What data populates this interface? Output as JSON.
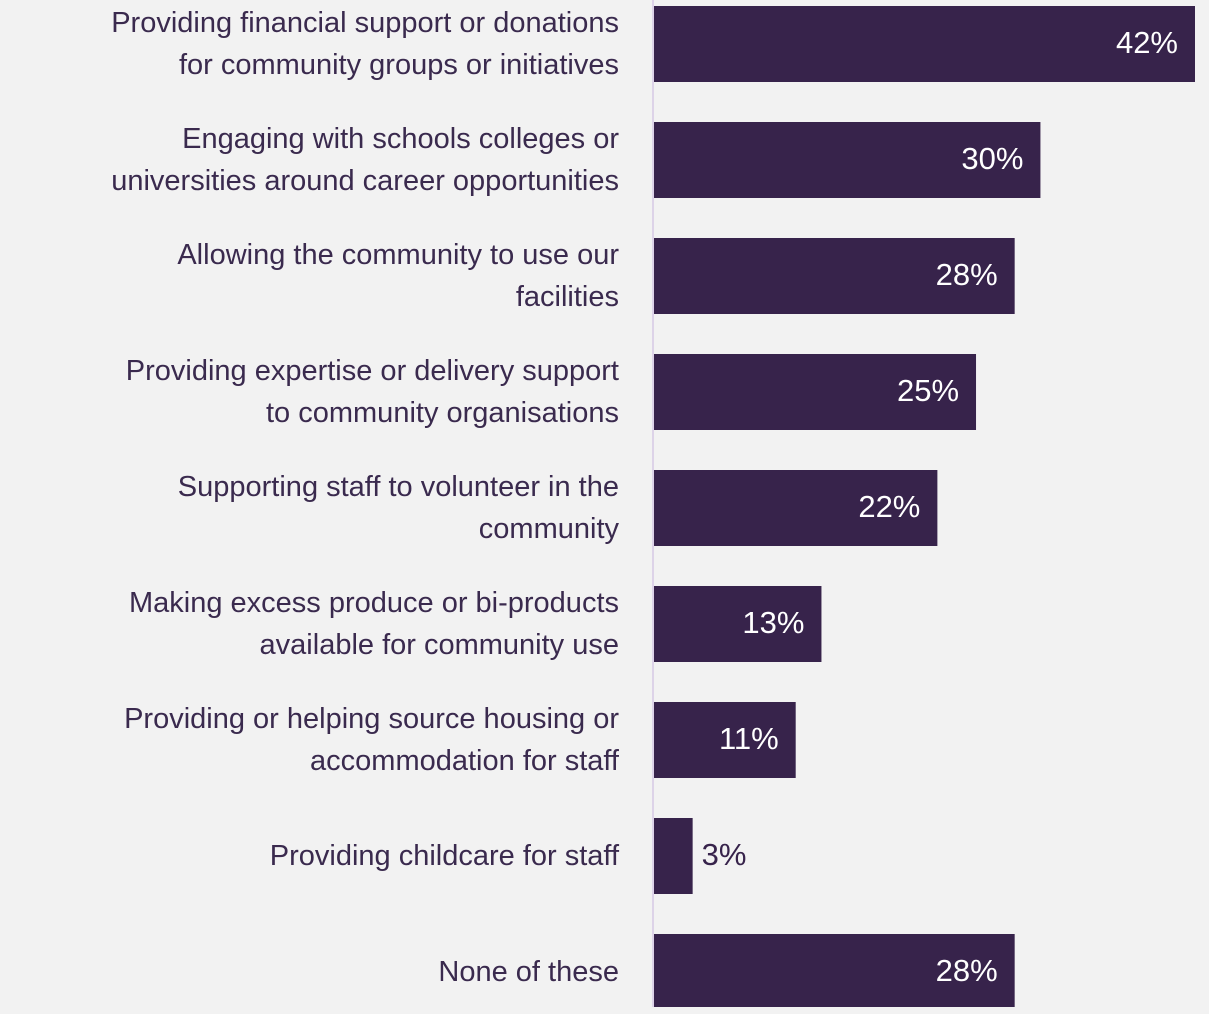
{
  "chart_data": {
    "type": "bar",
    "orientation": "horizontal",
    "categories": [
      "Providing financial support or donations\nfor community groups or initiatives",
      "Engaging with schools colleges or\nuniversities around career opportunities",
      "Allowing the community to use our\nfacilities",
      "Providing expertise or delivery support\nto community organisations",
      "Supporting staff to volunteer in the\ncommunity",
      "Making excess produce or bi-products\navailable for community use",
      "Providing or helping source housing or\naccommodation for staff",
      "Providing childcare for staff",
      "None of these"
    ],
    "values": [
      42,
      30,
      28,
      25,
      22,
      13,
      11,
      3,
      28
    ],
    "value_labels": [
      "42%",
      "30%",
      "28%",
      "25%",
      "22%",
      "13%",
      "11%",
      "3%",
      "28%"
    ],
    "color": "#37234b"
  }
}
